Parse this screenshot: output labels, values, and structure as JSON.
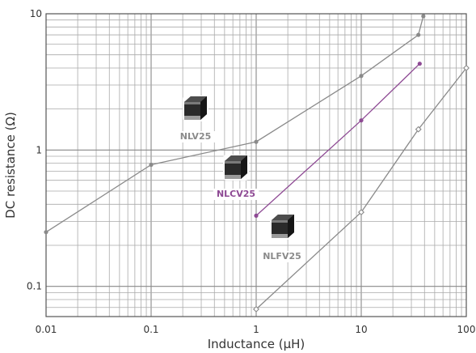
{
  "chart_data": {
    "type": "line",
    "xlabel": "Inductance (μH)",
    "ylabel": "DC resistance (Ω)",
    "x_scale": "log",
    "y_scale": "log",
    "xlim": [
      0.01,
      100
    ],
    "ylim": [
      0.06,
      10
    ],
    "grid": true,
    "x_ticks": [
      "0.01",
      "0.1",
      "1",
      "10",
      "100"
    ],
    "y_ticks": [
      "0.1",
      "1",
      "10"
    ],
    "series": [
      {
        "name": "NLV25",
        "color": "#8a8a8a",
        "marker": "filled-circle",
        "x": [
          0.01,
          0.1,
          1,
          10,
          35,
          39
        ],
        "y": [
          0.25,
          0.78,
          1.15,
          3.5,
          7.0,
          9.6
        ]
      },
      {
        "name": "NLCV25",
        "color": "#8e4a94",
        "marker": "filled-circle",
        "x": [
          1,
          10,
          36
        ],
        "y": [
          0.33,
          1.65,
          4.3
        ]
      },
      {
        "name": "NLFV25",
        "color": "#8a8a8a",
        "marker": "open-diamond",
        "x": [
          1,
          10,
          35,
          100
        ],
        "y": [
          0.068,
          0.35,
          1.42,
          4.0
        ]
      }
    ]
  }
}
